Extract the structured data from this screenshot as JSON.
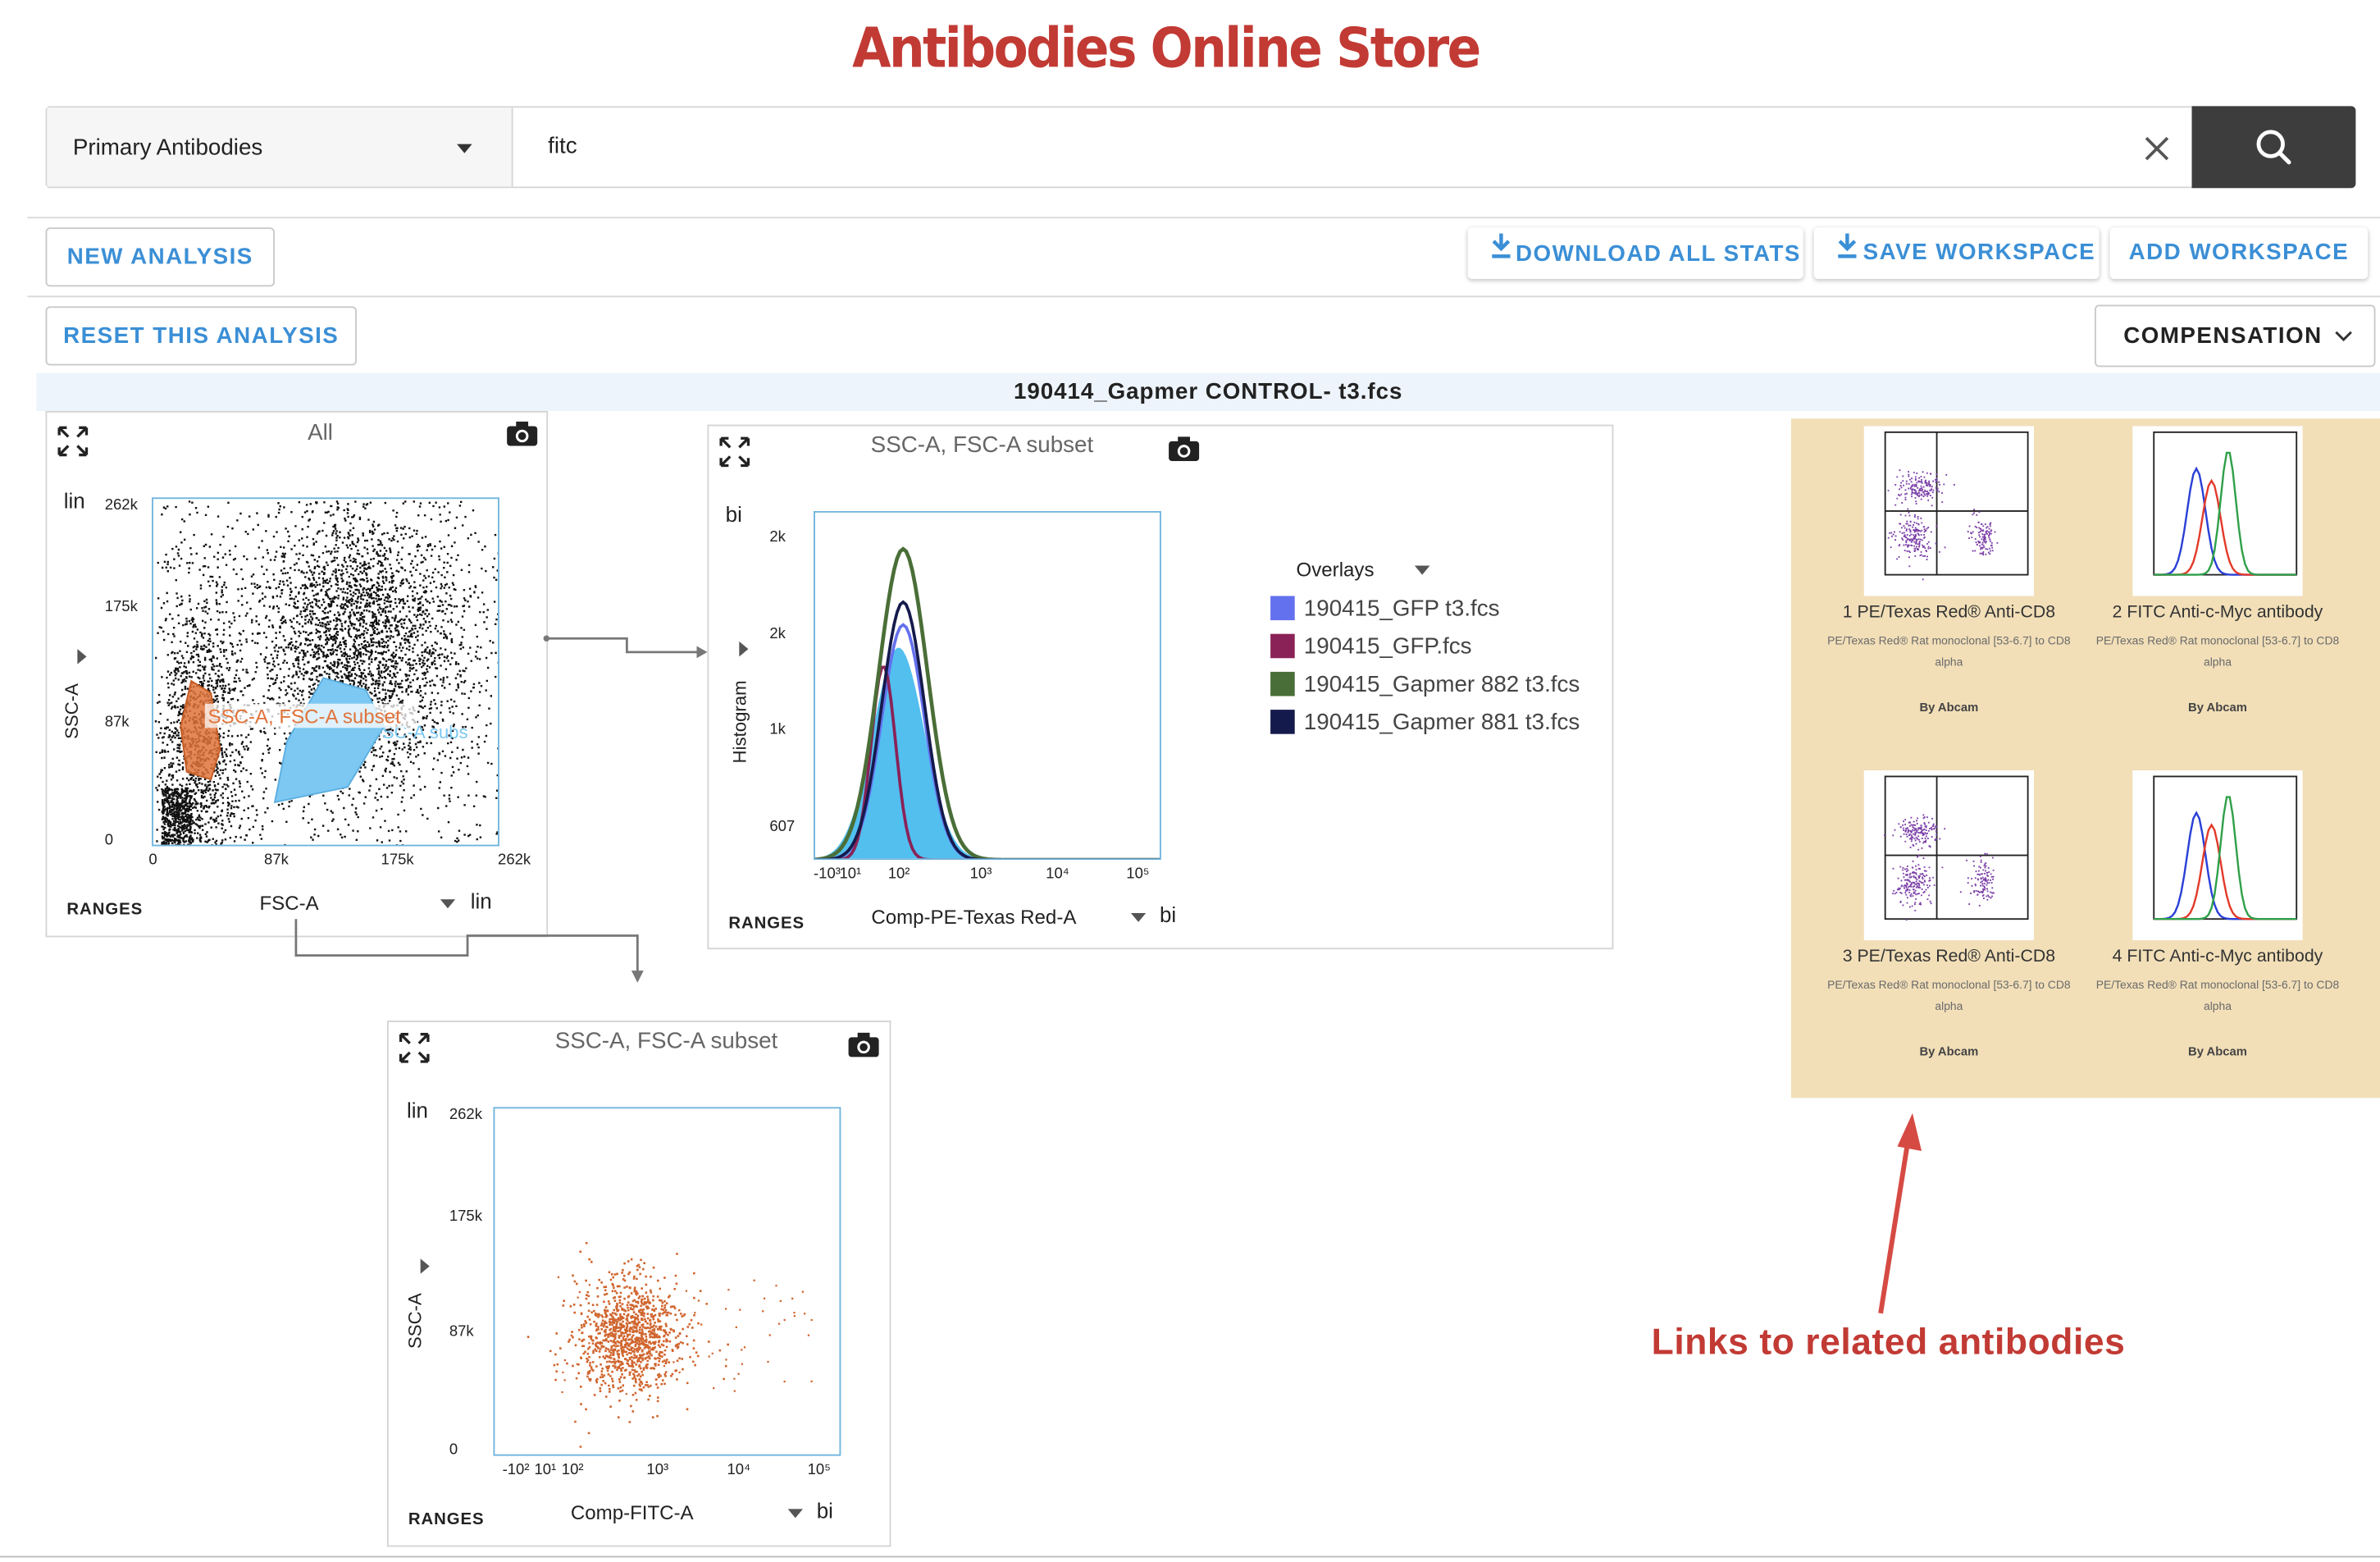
{
  "header": {
    "title": "Antibodies Online Store"
  },
  "search": {
    "category": "Primary Antibodies",
    "query": "fitc"
  },
  "toolbar": {
    "new_analysis": "NEW ANALYSIS",
    "reset_analysis": "RESET THIS ANALYSIS",
    "download_stats": "DOWNLOAD ALL STATS",
    "save_workspace": "SAVE WORKSPACE",
    "add_workspace": "ADD WORKSPACE",
    "compensation": "COMPENSATION"
  },
  "file": {
    "name": "190414_Gapmer CONTROL- t3.fcs"
  },
  "plots": [
    {
      "title": "All",
      "scale_y": "lin",
      "scale_x": "lin",
      "ylabel": "SSC-A",
      "xlabel": "FSC-A",
      "ranges": "RANGES",
      "yticks": [
        "262k",
        "175k",
        "87k",
        "0"
      ],
      "xticks": [
        "0",
        "87k",
        "175k",
        "262k"
      ],
      "gates": [
        "SSC-A, FSC-A subset",
        "SSC-A, FSC-A subs"
      ]
    },
    {
      "title": "SSC-A, FSC-A subset",
      "scale_y": "bi",
      "scale_x": "bi",
      "ylabel": "Histogram",
      "xlabel": "Comp-PE-Texas Red-A",
      "ranges": "RANGES",
      "yticks": [
        "2k",
        "2k",
        "1k",
        "607"
      ],
      "xticks": [
        "-10³",
        "10¹",
        "10²",
        "10³",
        "10⁴",
        "10⁵"
      ]
    },
    {
      "title": "SSC-A, FSC-A subset",
      "scale_y": "lin",
      "scale_x": "bi",
      "ylabel": "SSC-A",
      "xlabel": "Comp-FITC-A",
      "ranges": "RANGES",
      "yticks": [
        "262k",
        "175k",
        "87k",
        "0"
      ],
      "xticks": [
        "-10²",
        "10¹",
        "10²",
        "10³",
        "10⁴",
        "10⁵"
      ]
    }
  ],
  "overlays": {
    "label": "Overlays",
    "items": [
      {
        "name": "190415_GFP t3.fcs",
        "color": "#6471ee"
      },
      {
        "name": "190415_GFP.fcs",
        "color": "#8a2257"
      },
      {
        "name": "190415_Gapmer 882 t3.fcs",
        "color": "#4a6e37"
      },
      {
        "name": "190415_Gapmer 881 t3.fcs",
        "color": "#151a4c"
      }
    ]
  },
  "related": {
    "caption": "Links to related antibodies",
    "background": "#f2dfb8",
    "items": [
      {
        "name": "1 PE/Texas Red® Anti-CD8",
        "desc": "PE/Texas Red® Rat monoclonal [53-6.7] to CD8 alpha",
        "by": "By Abcam",
        "thumb": "dotplot"
      },
      {
        "name": "2 FITC Anti-c-Myc antibody",
        "desc": "PE/Texas Red® Rat monoclonal [53-6.7] to CD8 alpha",
        "by": "By Abcam",
        "thumb": "histogram"
      },
      {
        "name": "3 PE/Texas Red® Anti-CD8",
        "desc": "PE/Texas Red® Rat monoclonal [53-6.7] to CD8 alpha",
        "by": "By Abcam",
        "thumb": "dotplot"
      },
      {
        "name": "4 FITC Anti-c-Myc antibody",
        "desc": "PE/Texas Red® Rat monoclonal [53-6.7] to CD8 alpha",
        "by": "By Abcam",
        "thumb": "histogram"
      }
    ]
  },
  "colors": {
    "accent": "#3b8fd6",
    "title_red": "#c23a34",
    "gate_orange": "#e0733a",
    "gate_blue": "#7cc8f2",
    "search_button": "#3d3d3d"
  }
}
